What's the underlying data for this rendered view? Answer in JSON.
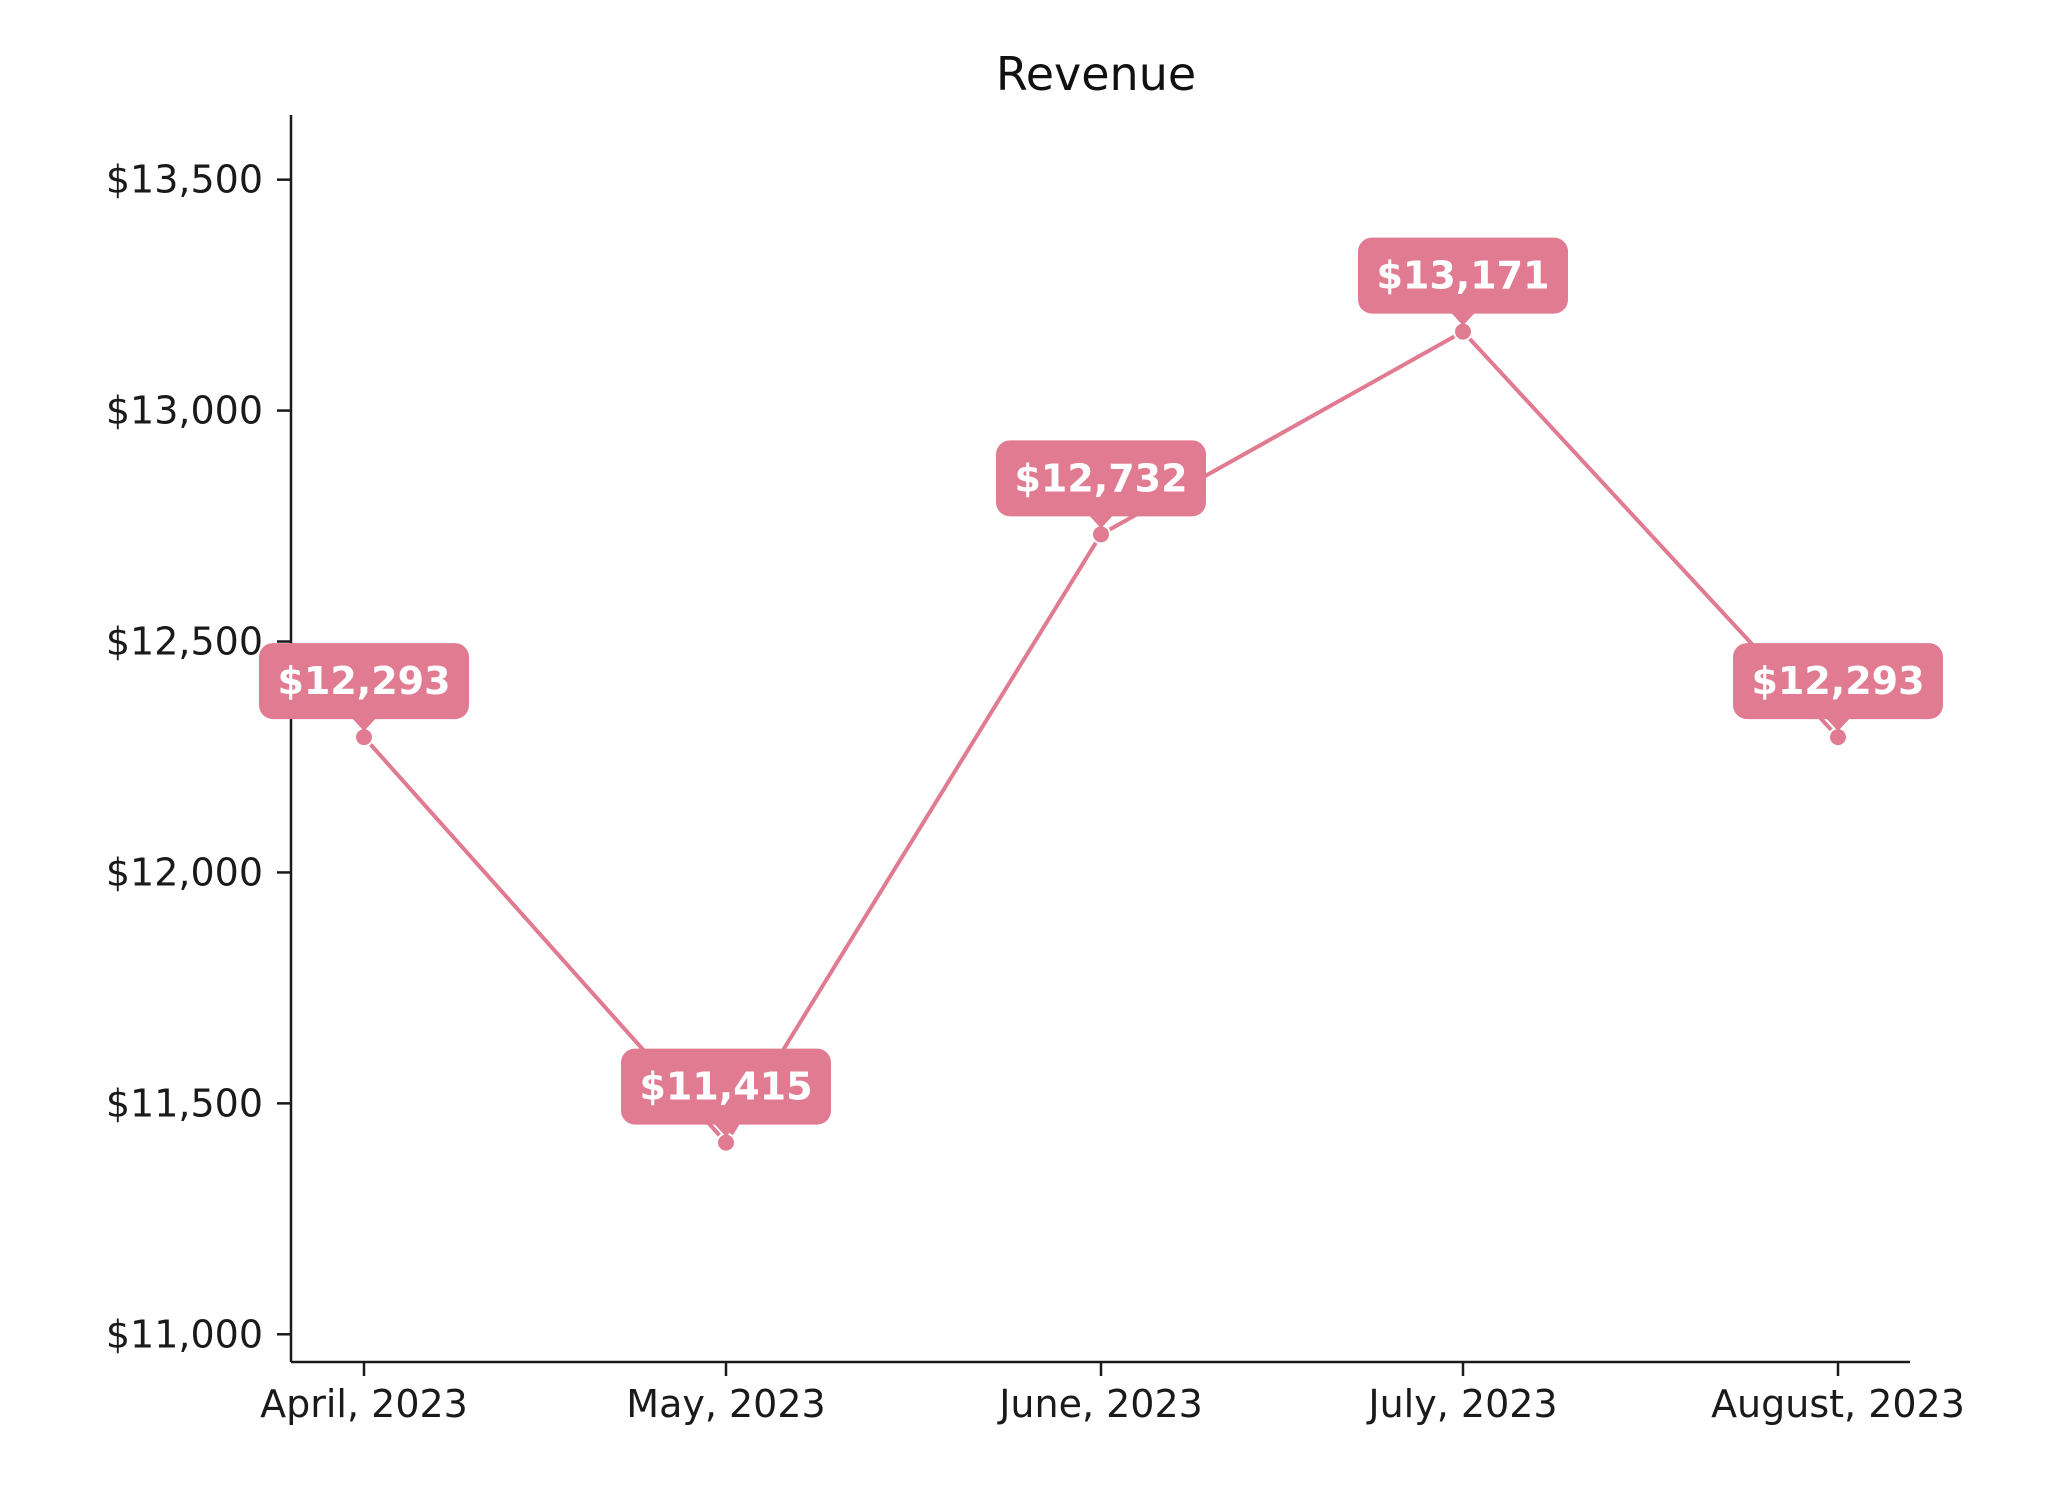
{
  "chart_data": {
    "type": "line",
    "title": "Revenue",
    "xlabel": "",
    "ylabel": "",
    "categories": [
      "April, 2023",
      "May, 2023",
      "June, 2023",
      "July, 2023",
      "August, 2023"
    ],
    "series": [
      {
        "values": [
          12293,
          11415,
          12732,
          13171,
          12293
        ],
        "data_labels": [
          "$12,293",
          "$11,415",
          "$12,732",
          "$13,171",
          "$12,293"
        ]
      }
    ],
    "ylim": [
      10940,
      13640
    ],
    "y_ticks": [
      11000,
      11500,
      12000,
      12500,
      13000,
      13500
    ],
    "y_tick_labels": [
      "$11,000",
      "$11,500",
      "$12,000",
      "$12,500",
      "$13,000",
      "$13,500"
    ],
    "grid": false,
    "legend": "none",
    "colors": {
      "line": "#e07b91",
      "label_box": "#e07b91",
      "label_text": "#ffffff",
      "axis": "#1a1a1a"
    }
  }
}
